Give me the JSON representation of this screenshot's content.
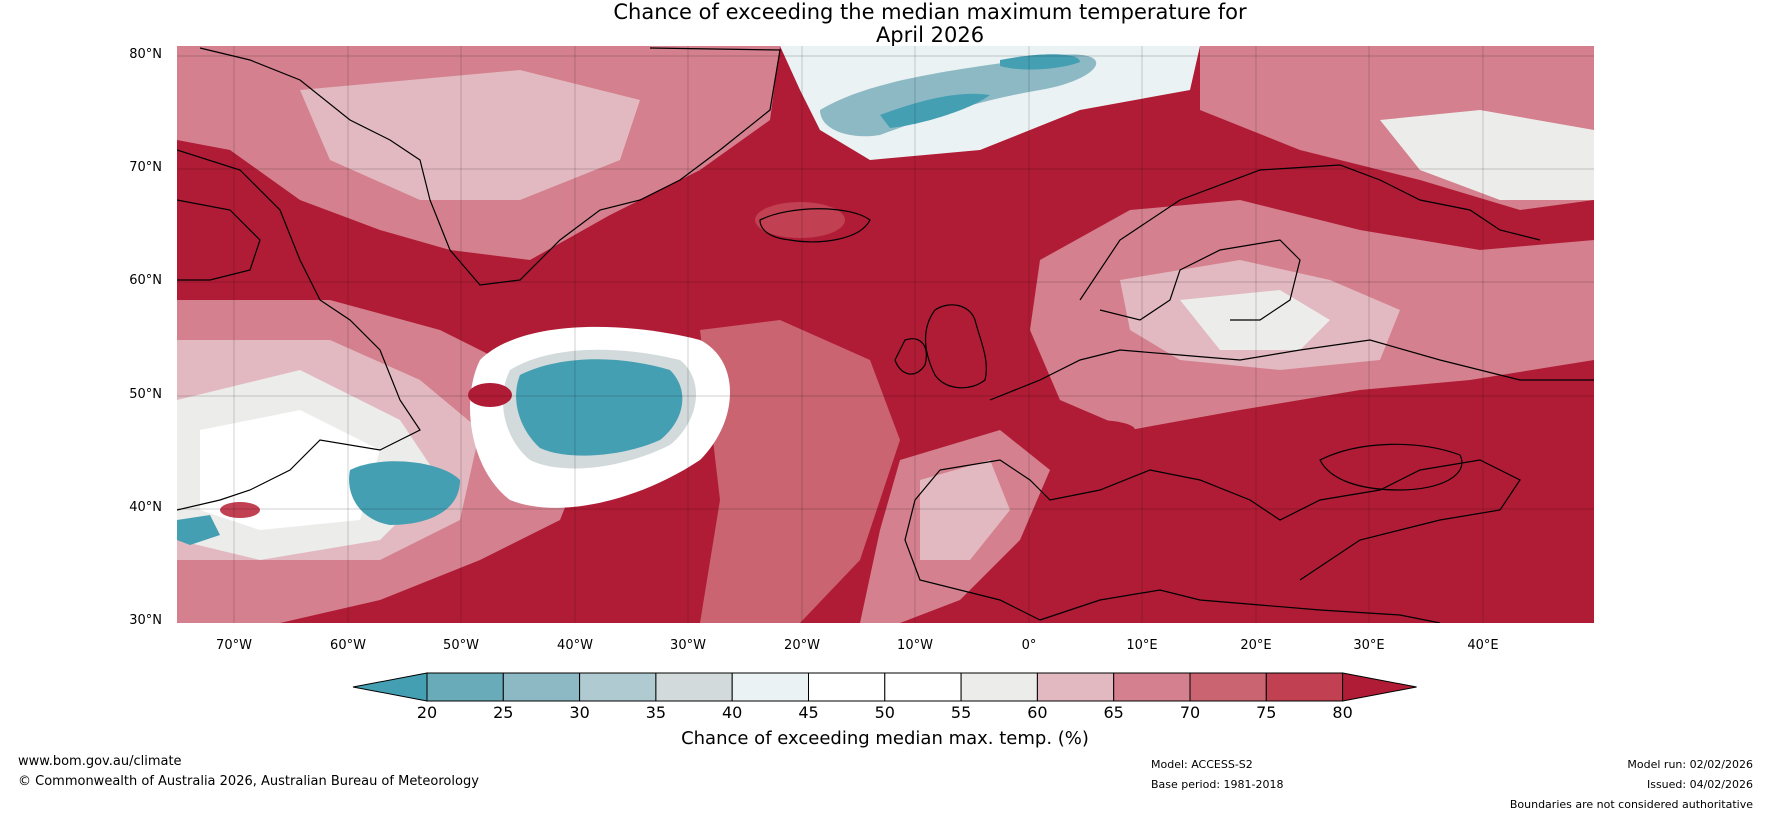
{
  "title": {
    "line1": "Chance of exceeding the median maximum temperature for",
    "line2": "April 2026"
  },
  "map": {
    "region": "North Atlantic and Europe",
    "lat_labels": [
      "80°N",
      "70°N",
      "60°N",
      "50°N",
      "40°N",
      "30°N"
    ],
    "lon_labels": [
      "70°W",
      "60°W",
      "50°W",
      "40°W",
      "30°W",
      "20°W",
      "10°W",
      "0°",
      "10°E",
      "20°E",
      "30°E",
      "40°E"
    ]
  },
  "colorbar": {
    "ticks": [
      "20",
      "25",
      "30",
      "35",
      "40",
      "45",
      "50",
      "55",
      "60",
      "65",
      "70",
      "75",
      "80"
    ],
    "colors": [
      "#449fb3",
      "#6aabba",
      "#8db9c5",
      "#b0cad1",
      "#d3dadb",
      "#eaf2f4",
      "#ffffff",
      "#ffffff",
      "#ececeb",
      "#e2b9c0",
      "#d4808e",
      "#c96470",
      "#c14052",
      "#b01c35"
    ],
    "label": "Chance of exceeding median max. temp. (%)"
  },
  "footer": {
    "website": "www.bom.gov.au/climate",
    "copyright": "© Commonwealth of Australia 2026, Australian Bureau of Meteorology",
    "model": "Model: ACCESS-S2",
    "base_period": "Base period: 1981-2018",
    "model_run": "Model run: 02/02/2026",
    "issued": "Issued: 04/02/2026",
    "disclaimer": "Boundaries are not considered authoritative"
  }
}
